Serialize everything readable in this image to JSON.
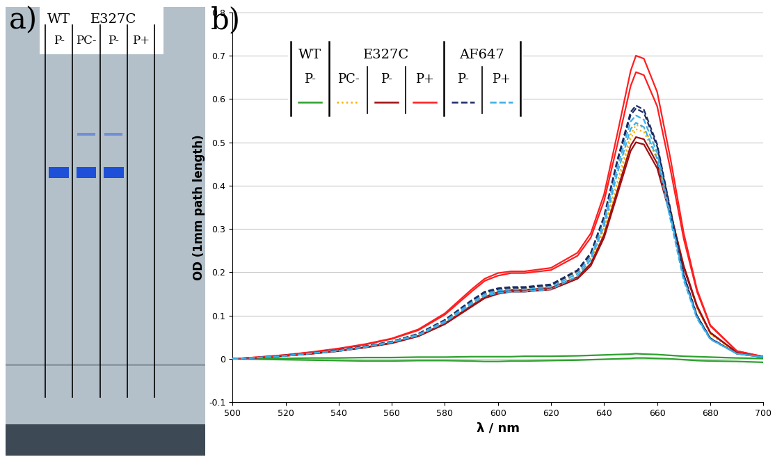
{
  "panel_labels": [
    "a)",
    "b)"
  ],
  "gel": {
    "groups": [
      {
        "label": "WT",
        "lanes": [
          "P-"
        ]
      },
      {
        "label": "E327C",
        "lanes": [
          "PC-",
          "P-",
          "P+"
        ]
      }
    ],
    "bands": {
      "main": [
        true,
        true,
        true,
        false
      ],
      "upper": [
        false,
        true,
        true,
        false
      ]
    }
  },
  "chart_data": {
    "type": "line",
    "xlabel": "λ / nm",
    "ylabel": "OD (1mm path length)",
    "x": [
      500,
      510,
      520,
      530,
      540,
      550,
      560,
      570,
      580,
      590,
      595,
      600,
      605,
      610,
      620,
      630,
      635,
      640,
      645,
      650,
      652,
      655,
      660,
      665,
      670,
      675,
      680,
      690,
      700
    ],
    "xlim": [
      500,
      700
    ],
    "xticks": [
      500,
      520,
      540,
      560,
      580,
      600,
      620,
      640,
      660,
      680,
      700
    ],
    "ylim": [
      -0.1,
      0.8
    ],
    "yticks": [
      -0.1,
      0,
      0.1,
      0.2,
      0.3,
      0.4,
      0.5,
      0.6,
      0.7,
      0.8
    ],
    "grid": "y",
    "series": [
      {
        "group": "WT",
        "name": "P-",
        "color": "#2ca02c",
        "line_style": "solid",
        "values": [
          0.0,
          0.001,
          0.001,
          0.002,
          0.002,
          0.003,
          0.003,
          0.004,
          0.004,
          0.005,
          0.005,
          0.005,
          0.005,
          0.006,
          0.006,
          0.007,
          0.008,
          0.009,
          0.01,
          0.011,
          0.012,
          0.011,
          0.01,
          0.008,
          0.006,
          0.005,
          0.004,
          0.002,
          0.001
        ]
      },
      {
        "group": "WT",
        "name": "P-",
        "color": "#2ca02c",
        "line_style": "solid",
        "values": [
          0.0,
          -0.001,
          -0.002,
          -0.003,
          -0.004,
          -0.005,
          -0.005,
          -0.004,
          -0.004,
          -0.005,
          -0.006,
          -0.006,
          -0.005,
          -0.005,
          -0.004,
          -0.003,
          -0.002,
          -0.001,
          0.0,
          0.001,
          0.002,
          0.002,
          0.001,
          0.0,
          -0.002,
          -0.004,
          -0.005,
          -0.006,
          -0.008
        ]
      },
      {
        "group": "E327C",
        "name": "PC-",
        "color": "#f5b000",
        "line_style": "dotted",
        "values": [
          0.0,
          0.003,
          0.007,
          0.013,
          0.019,
          0.028,
          0.039,
          0.056,
          0.086,
          0.13,
          0.15,
          0.16,
          0.165,
          0.165,
          0.17,
          0.198,
          0.232,
          0.302,
          0.41,
          0.518,
          0.54,
          0.534,
          0.47,
          0.345,
          0.215,
          0.12,
          0.058,
          0.014,
          0.004
        ]
      },
      {
        "group": "E327C",
        "name": "PC-",
        "color": "#f5b000",
        "line_style": "dotted",
        "values": [
          0.0,
          0.003,
          0.007,
          0.013,
          0.019,
          0.027,
          0.038,
          0.055,
          0.085,
          0.128,
          0.148,
          0.158,
          0.163,
          0.163,
          0.168,
          0.195,
          0.228,
          0.296,
          0.402,
          0.508,
          0.53,
          0.524,
          0.461,
          0.338,
          0.211,
          0.118,
          0.057,
          0.014,
          0.004
        ]
      },
      {
        "group": "E327C",
        "name": "P-",
        "color": "#a00f0f",
        "line_style": "solid",
        "values": [
          0.0,
          0.003,
          0.007,
          0.012,
          0.018,
          0.026,
          0.036,
          0.052,
          0.08,
          0.12,
          0.14,
          0.15,
          0.155,
          0.155,
          0.16,
          0.185,
          0.215,
          0.28,
          0.38,
          0.48,
          0.5,
          0.495,
          0.44,
          0.33,
          0.21,
          0.12,
          0.06,
          0.015,
          0.005
        ]
      },
      {
        "group": "E327C",
        "name": "P-",
        "color": "#a00f0f",
        "line_style": "solid",
        "values": [
          0.0,
          0.003,
          0.007,
          0.012,
          0.018,
          0.027,
          0.037,
          0.053,
          0.082,
          0.123,
          0.143,
          0.154,
          0.159,
          0.159,
          0.164,
          0.189,
          0.22,
          0.287,
          0.389,
          0.492,
          0.512,
          0.507,
          0.451,
          0.338,
          0.215,
          0.123,
          0.061,
          0.015,
          0.005
        ]
      },
      {
        "group": "E327C",
        "name": "P+",
        "color": "#ff1f1f",
        "line_style": "solid",
        "values": [
          0.0,
          0.004,
          0.009,
          0.016,
          0.024,
          0.034,
          0.047,
          0.068,
          0.105,
          0.16,
          0.185,
          0.198,
          0.202,
          0.202,
          0.21,
          0.245,
          0.29,
          0.38,
          0.52,
          0.665,
          0.7,
          0.693,
          0.616,
          0.462,
          0.29,
          0.16,
          0.078,
          0.018,
          0.005
        ]
      },
      {
        "group": "E327C",
        "name": "P+",
        "color": "#ff1f1f",
        "line_style": "solid",
        "values": [
          0.0,
          0.004,
          0.009,
          0.015,
          0.023,
          0.033,
          0.046,
          0.066,
          0.102,
          0.155,
          0.18,
          0.192,
          0.198,
          0.198,
          0.205,
          0.238,
          0.28,
          0.365,
          0.495,
          0.63,
          0.662,
          0.655,
          0.583,
          0.437,
          0.277,
          0.155,
          0.076,
          0.018,
          0.005
        ]
      },
      {
        "group": "AF647",
        "name": "P-",
        "color": "#1c2c66",
        "line_style": "dashed",
        "values": [
          0.0,
          0.003,
          0.008,
          0.013,
          0.02,
          0.029,
          0.04,
          0.058,
          0.09,
          0.135,
          0.155,
          0.163,
          0.166,
          0.166,
          0.172,
          0.205,
          0.245,
          0.33,
          0.46,
          0.57,
          0.585,
          0.575,
          0.495,
          0.345,
          0.195,
          0.1,
          0.048,
          0.012,
          0.004
        ]
      },
      {
        "group": "AF647",
        "name": "P-",
        "color": "#1c2c66",
        "line_style": "dashed",
        "values": [
          0.0,
          0.003,
          0.008,
          0.013,
          0.02,
          0.029,
          0.04,
          0.057,
          0.089,
          0.133,
          0.153,
          0.161,
          0.164,
          0.164,
          0.17,
          0.203,
          0.242,
          0.326,
          0.455,
          0.563,
          0.578,
          0.568,
          0.49,
          0.341,
          0.193,
          0.099,
          0.047,
          0.012,
          0.004
        ]
      },
      {
        "group": "AF647",
        "name": "P+",
        "color": "#3aaee6",
        "line_style": "dashed",
        "values": [
          0.0,
          0.003,
          0.007,
          0.013,
          0.019,
          0.028,
          0.039,
          0.056,
          0.087,
          0.13,
          0.149,
          0.157,
          0.16,
          0.16,
          0.166,
          0.197,
          0.236,
          0.318,
          0.442,
          0.548,
          0.562,
          0.552,
          0.476,
          0.331,
          0.187,
          0.096,
          0.046,
          0.012,
          0.004
        ]
      },
      {
        "group": "AF647",
        "name": "P+",
        "color": "#3aaee6",
        "line_style": "dashed",
        "values": [
          0.0,
          0.003,
          0.007,
          0.013,
          0.018,
          0.027,
          0.038,
          0.054,
          0.084,
          0.126,
          0.145,
          0.152,
          0.155,
          0.155,
          0.161,
          0.191,
          0.229,
          0.308,
          0.429,
          0.531,
          0.545,
          0.535,
          0.462,
          0.321,
          0.181,
          0.093,
          0.045,
          0.012,
          0.004
        ]
      }
    ]
  }
}
